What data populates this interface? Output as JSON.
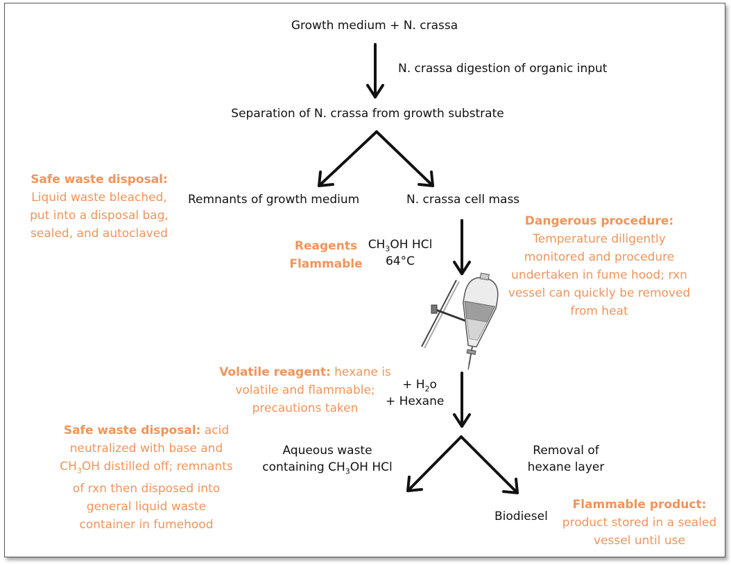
{
  "flow": {
    "step1": "Growth medium + N. crassa",
    "step1_action": "N. crassa digestion of organic input",
    "step2": "Separation of N. crassa from growth substrate",
    "branch_left": "Remnants of growth medium",
    "branch_right": "N. crassa cell mass",
    "reagents_line1_a": "CH",
    "reagents_line1_sub": "3",
    "reagents_line1_b": "OH HCl",
    "reagents_line2": "64°C",
    "add_line1_a": "+ H",
    "add_line1_sub": "2",
    "add_line1_b": "o",
    "add_line2": "+ Hexane",
    "aqueous_line1": "Aqueous waste",
    "aqueous_line2_a": "containing CH",
    "aqueous_line2_sub": "3",
    "aqueous_line2_b": "OH HCl",
    "removal_line1": "Removal of",
    "removal_line2": "hexane layer",
    "product": "Biodiesel"
  },
  "notes": {
    "safe1_title": "Safe waste disposal:",
    "safe1_lines": [
      "Liquid waste bleached,",
      "put into a disposal bag,",
      "sealed, and autoclaved"
    ],
    "reagents_title_1": "Reagents",
    "reagents_title_2": "Flammable",
    "danger_title": "Dangerous procedure:",
    "danger_lines": [
      "Temperature diligently",
      "monitored and procedure",
      "undertaken in fume hood; rxn",
      "vessel can quickly be removed",
      "from heat"
    ],
    "volatile_title": "Volatile reagent:",
    "volatile_rest": " hexane is",
    "volatile_lines": [
      "volatile and flammable;",
      "precautions taken"
    ],
    "safe2_title": "Safe waste disposal:",
    "safe2_rest": " acid",
    "safe2_line2": "neutralized with base and",
    "safe2_line3_a": "CH",
    "safe2_line3_sub": "3",
    "safe2_line3_b": "OH distilled off; remnants",
    "safe2_lines": [
      "of rxn then disposed into",
      "general liquid waste",
      "container in fumehood"
    ],
    "flam_title": "Flammable product:",
    "flam_lines": [
      "product stored in a sealed",
      "vessel until use"
    ]
  },
  "colors": {
    "note": "#f0945a",
    "text": "#111111",
    "arrow": "#111111"
  },
  "icons": {
    "apparatus": "separatory-funnel-icon"
  }
}
